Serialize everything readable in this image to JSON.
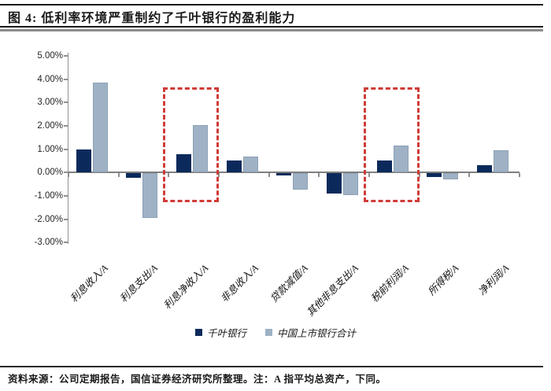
{
  "header": {
    "title": "图 4: 低利率环境严重制约了千叶银行的盈利能力"
  },
  "chart_data": {
    "type": "bar",
    "title": "图 4: 低利率环境严重制约了千叶银行的盈利能力",
    "categories": [
      "利息收入/A",
      "利息支出/A",
      "利息净收入/A",
      "非息收入/A",
      "贷款减值/A",
      "其他非息支出/A",
      "税前利润/A",
      "所得税/A",
      "净利润/A"
    ],
    "series": [
      {
        "name": "千叶银行",
        "color": "#0b2a5b",
        "values": [
          1.0,
          -0.18,
          0.8,
          0.5,
          -0.08,
          -0.85,
          0.5,
          -0.15,
          0.33
        ]
      },
      {
        "name": "中国上市银行合计",
        "color": "#9fb2c5",
        "values": [
          3.85,
          -1.9,
          2.03,
          0.7,
          -0.7,
          -0.95,
          1.15,
          -0.25,
          0.96
        ]
      }
    ],
    "unit": "%",
    "ylim": [
      -3,
      5
    ],
    "ytick_values": [
      5,
      4,
      3,
      2,
      1,
      0,
      -1,
      -2,
      -3
    ],
    "yticks": [
      "5.00%",
      "4.00%",
      "3.00%",
      "2.00%",
      "1.00%",
      "0.00%",
      "-1.00%",
      "-2.00%",
      "-3.00%"
    ],
    "grid": false,
    "legend_position": "bottom",
    "highlighted_category_indices": [
      2,
      6
    ],
    "highlight_color": "#cf3c38"
  },
  "legend": {
    "items": [
      {
        "label": "千叶银行",
        "color": "#0b2a5b"
      },
      {
        "label": "中国上市银行合计",
        "color": "#9fb2c5"
      }
    ]
  },
  "footer": {
    "source_note": "资料来源：公司定期报告，国信证券经济研究所整理。注：A 指平均总资产，下同。"
  }
}
